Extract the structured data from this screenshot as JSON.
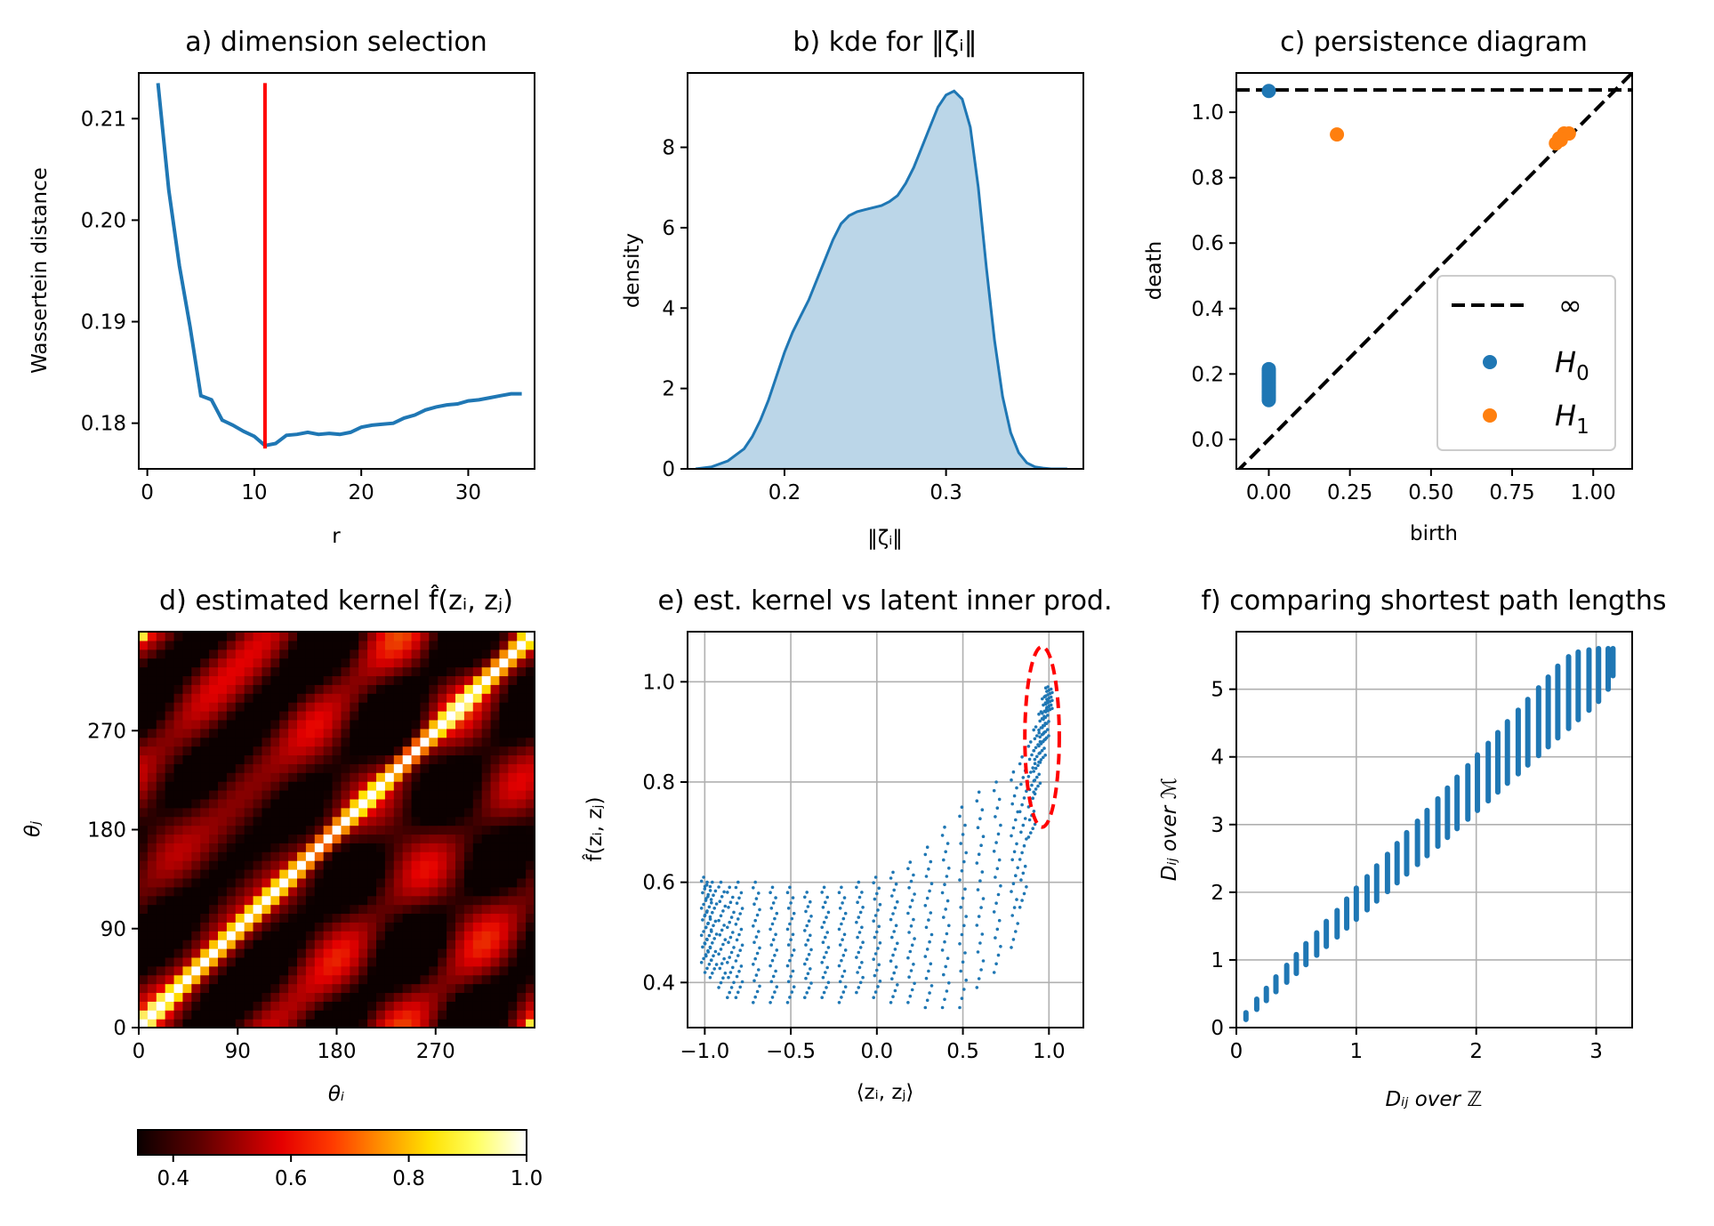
{
  "chart_data": [
    {
      "id": "a",
      "type": "line",
      "title": "a) dimension selection",
      "xlabel": "r",
      "ylabel": "Wassertein distance",
      "xlim": [
        -0.8,
        36.2
      ],
      "ylim": [
        0.1755,
        0.2145
      ],
      "xticks": [
        0,
        10,
        20,
        30
      ],
      "yticks": [
        0.18,
        0.19,
        0.2,
        0.21
      ],
      "ytick_labels": [
        "0.18",
        "0.19",
        "0.20",
        "0.21"
      ],
      "grid": false,
      "series": [
        {
          "color": "#1f77b4",
          "x": [
            1,
            2,
            3,
            4,
            5,
            6,
            7,
            8,
            9,
            10,
            11,
            12,
            13,
            14,
            15,
            16,
            17,
            18,
            19,
            20,
            21,
            22,
            23,
            24,
            25,
            26,
            27,
            28,
            29,
            30,
            31,
            32,
            33,
            34,
            35
          ],
          "y": [
            0.2135,
            0.203,
            0.1955,
            0.1895,
            0.1827,
            0.1823,
            0.1803,
            0.1798,
            0.1792,
            0.1787,
            0.1778,
            0.178,
            0.1788,
            0.1789,
            0.1791,
            0.1789,
            0.179,
            0.1789,
            0.1791,
            0.1796,
            0.1798,
            0.1799,
            0.18,
            0.1805,
            0.1808,
            0.1813,
            0.1816,
            0.1818,
            0.1819,
            0.1822,
            0.1823,
            0.1825,
            0.1827,
            0.1829,
            0.1829
          ]
        }
      ],
      "vline": {
        "x": 11,
        "ymin": 0.1775,
        "ymax": 0.2135,
        "color": "#ff0000"
      }
    },
    {
      "id": "b",
      "type": "area",
      "title": "b) kde for ‖ζᵢ‖",
      "xlabel": "‖ζᵢ‖",
      "ylabel": "density",
      "xlim": [
        0.14,
        0.385
      ],
      "ylim": [
        0,
        9.85
      ],
      "xticks": [
        0.2,
        0.3
      ],
      "xtick_labels": [
        "0.2",
        "0.3"
      ],
      "yticks": [
        0,
        2,
        4,
        6,
        8
      ],
      "grid": false,
      "fill_color": "#1f77b4",
      "x": [
        0.145,
        0.155,
        0.165,
        0.175,
        0.18,
        0.185,
        0.19,
        0.195,
        0.2,
        0.205,
        0.21,
        0.215,
        0.22,
        0.225,
        0.23,
        0.235,
        0.24,
        0.245,
        0.25,
        0.255,
        0.26,
        0.265,
        0.27,
        0.275,
        0.28,
        0.285,
        0.29,
        0.295,
        0.3,
        0.305,
        0.31,
        0.315,
        0.32,
        0.325,
        0.33,
        0.335,
        0.34,
        0.345,
        0.35,
        0.355,
        0.36,
        0.365,
        0.37,
        0.375
      ],
      "y": [
        0.0,
        0.05,
        0.2,
        0.5,
        0.8,
        1.2,
        1.7,
        2.3,
        2.9,
        3.4,
        3.8,
        4.2,
        4.7,
        5.2,
        5.7,
        6.1,
        6.3,
        6.4,
        6.45,
        6.5,
        6.55,
        6.65,
        6.8,
        7.1,
        7.5,
        8.0,
        8.5,
        9.0,
        9.3,
        9.4,
        9.2,
        8.5,
        7.0,
        5.0,
        3.2,
        1.8,
        0.9,
        0.4,
        0.15,
        0.05,
        0.02,
        0.0,
        0.0,
        0.0
      ]
    },
    {
      "id": "c",
      "type": "scatter",
      "title": "c) persistence diagram",
      "xlabel": "birth",
      "ylabel": "death",
      "xlim": [
        -0.1,
        1.12
      ],
      "ylim": [
        -0.09,
        1.12
      ],
      "xticks": [
        0.0,
        0.25,
        0.5,
        0.75,
        1.0
      ],
      "xtick_labels": [
        "0.00",
        "0.25",
        "0.50",
        "0.75",
        "1.00"
      ],
      "yticks": [
        0.0,
        0.2,
        0.4,
        0.6,
        0.8,
        1.0
      ],
      "ytick_labels": [
        "0.0",
        "0.2",
        "0.4",
        "0.6",
        "0.8",
        "1.0"
      ],
      "grid": false,
      "infinity_line": {
        "y": 1.068,
        "label": "∞"
      },
      "legend_position": "lower-right",
      "series": [
        {
          "name": "H",
          "subscript": "0",
          "color": "#1f77b4",
          "points": [
            [
              0,
              1.065
            ],
            [
              0,
              0.12
            ],
            [
              0,
              0.125
            ],
            [
              0,
              0.13
            ],
            [
              0,
              0.135
            ],
            [
              0,
              0.14
            ],
            [
              0,
              0.145
            ],
            [
              0,
              0.15
            ],
            [
              0,
              0.155
            ],
            [
              0,
              0.16
            ],
            [
              0,
              0.165
            ],
            [
              0,
              0.17
            ],
            [
              0,
              0.175
            ],
            [
              0,
              0.18
            ],
            [
              0,
              0.185
            ],
            [
              0,
              0.19
            ],
            [
              0,
              0.195
            ],
            [
              0,
              0.2
            ],
            [
              0,
              0.205
            ],
            [
              0,
              0.21
            ],
            [
              0,
              0.215
            ]
          ]
        },
        {
          "name": "H",
          "subscript": "1",
          "color": "#ff7f0e",
          "points": [
            [
              0.21,
              0.932
            ],
            [
              0.885,
              0.905
            ],
            [
              0.9,
              0.915
            ],
            [
              0.91,
              0.935
            ],
            [
              0.925,
              0.935
            ],
            [
              0.895,
              0.92
            ]
          ]
        }
      ]
    },
    {
      "id": "d",
      "type": "heatmap",
      "title": "d) estimated kernel f̂(zᵢ, zⱼ)",
      "xlabel": "θᵢ",
      "ylabel": "θⱼ",
      "xlim": [
        0,
        360
      ],
      "ylim": [
        0,
        360
      ],
      "xticks": [
        0,
        90,
        180,
        270
      ],
      "yticks": [
        0,
        90,
        180,
        270
      ],
      "colormap": "hot",
      "colorbar": {
        "min": 0.34,
        "max": 1.0,
        "ticks": [
          0.4,
          0.6,
          0.8,
          1.0
        ],
        "tick_labels": [
          "0.4",
          "0.6",
          "0.8",
          "1.0"
        ]
      }
    },
    {
      "id": "e",
      "type": "scatter",
      "title": "e) est. kernel vs latent inner prod.",
      "xlabel": "⟨zᵢ, zⱼ⟩",
      "ylabel": "f̂(zᵢ, zⱼ)",
      "xlim": [
        -1.1,
        1.2
      ],
      "ylim": [
        0.31,
        1.1
      ],
      "xticks": [
        -1.0,
        -0.5,
        0.0,
        0.5,
        1.0
      ],
      "xtick_labels": [
        "−1.0",
        "−0.5",
        "0.0",
        "0.5",
        "1.0"
      ],
      "yticks": [
        0.4,
        0.6,
        0.8,
        1.0
      ],
      "ytick_labels": [
        "0.4",
        "0.6",
        "0.8",
        "1.0"
      ],
      "grid": true,
      "color": "#1f77b4",
      "highlight_ellipse": {
        "cx": 0.96,
        "cy": 0.89,
        "rx": 0.1,
        "ry": 0.18,
        "color": "#ff0000"
      },
      "columns": [
        {
          "x": -1.0,
          "ymin": 0.44,
          "ymax": 0.61
        },
        {
          "x": -0.98,
          "ymin": 0.42,
          "ymax": 0.6
        },
        {
          "x": -0.95,
          "ymin": 0.41,
          "ymax": 0.6
        },
        {
          "x": -0.9,
          "ymin": 0.39,
          "ymax": 0.6
        },
        {
          "x": -0.85,
          "ymin": 0.37,
          "ymax": 0.59
        },
        {
          "x": -0.8,
          "ymin": 0.37,
          "ymax": 0.6
        },
        {
          "x": -0.7,
          "ymin": 0.36,
          "ymax": 0.6
        },
        {
          "x": -0.6,
          "ymin": 0.36,
          "ymax": 0.59
        },
        {
          "x": -0.5,
          "ymin": 0.36,
          "ymax": 0.59
        },
        {
          "x": -0.4,
          "ymin": 0.37,
          "ymax": 0.58
        },
        {
          "x": -0.3,
          "ymin": 0.37,
          "ymax": 0.59
        },
        {
          "x": -0.2,
          "ymin": 0.36,
          "ymax": 0.59
        },
        {
          "x": -0.1,
          "ymin": 0.38,
          "ymax": 0.6
        },
        {
          "x": 0.0,
          "ymin": 0.37,
          "ymax": 0.61
        },
        {
          "x": 0.1,
          "ymin": 0.36,
          "ymax": 0.62
        },
        {
          "x": 0.2,
          "ymin": 0.36,
          "ymax": 0.64
        },
        {
          "x": 0.3,
          "ymin": 0.35,
          "ymax": 0.67
        },
        {
          "x": 0.4,
          "ymin": 0.35,
          "ymax": 0.71
        },
        {
          "x": 0.5,
          "ymin": 0.35,
          "ymax": 0.75
        },
        {
          "x": 0.6,
          "ymin": 0.39,
          "ymax": 0.78
        },
        {
          "x": 0.7,
          "ymin": 0.42,
          "ymax": 0.8
        },
        {
          "x": 0.8,
          "ymin": 0.47,
          "ymax": 0.82
        },
        {
          "x": 0.85,
          "ymin": 0.55,
          "ymax": 0.85
        },
        {
          "x": 0.9,
          "ymin": 0.69,
          "ymax": 0.88
        },
        {
          "x": 0.93,
          "ymin": 0.78,
          "ymax": 0.91
        },
        {
          "x": 0.96,
          "ymin": 0.84,
          "ymax": 0.94
        },
        {
          "x": 0.98,
          "ymin": 0.88,
          "ymax": 0.97
        },
        {
          "x": 1.0,
          "ymin": 0.94,
          "ymax": 0.99
        }
      ]
    },
    {
      "id": "f",
      "type": "scatter",
      "title": "f) comparing shortest path lengths",
      "xlabel": "Dᵢⱼ over ℤ",
      "ylabel": "Dᵢⱼ over ℳ",
      "xlim": [
        0,
        3.3
      ],
      "ylim": [
        0,
        5.85
      ],
      "xticks": [
        0,
        1,
        2,
        3
      ],
      "yticks": [
        0,
        1,
        2,
        3,
        4,
        5
      ],
      "grid": true,
      "color": "#1f77b4",
      "segments": [
        {
          "x": 0.08,
          "ymin": 0.12,
          "ymax": 0.22
        },
        {
          "x": 0.17,
          "ymin": 0.27,
          "ymax": 0.42
        },
        {
          "x": 0.25,
          "ymin": 0.4,
          "ymax": 0.58
        },
        {
          "x": 0.33,
          "ymin": 0.53,
          "ymax": 0.75
        },
        {
          "x": 0.42,
          "ymin": 0.67,
          "ymax": 0.92
        },
        {
          "x": 0.5,
          "ymin": 0.8,
          "ymax": 1.08
        },
        {
          "x": 0.58,
          "ymin": 0.93,
          "ymax": 1.24
        },
        {
          "x": 0.67,
          "ymin": 1.07,
          "ymax": 1.4
        },
        {
          "x": 0.75,
          "ymin": 1.2,
          "ymax": 1.57
        },
        {
          "x": 0.84,
          "ymin": 1.34,
          "ymax": 1.73
        },
        {
          "x": 0.92,
          "ymin": 1.47,
          "ymax": 1.9
        },
        {
          "x": 1.0,
          "ymin": 1.6,
          "ymax": 2.06
        },
        {
          "x": 1.09,
          "ymin": 1.74,
          "ymax": 2.23
        },
        {
          "x": 1.17,
          "ymin": 1.87,
          "ymax": 2.39
        },
        {
          "x": 1.26,
          "ymin": 2.01,
          "ymax": 2.56
        },
        {
          "x": 1.34,
          "ymin": 2.14,
          "ymax": 2.72
        },
        {
          "x": 1.42,
          "ymin": 2.27,
          "ymax": 2.88
        },
        {
          "x": 1.51,
          "ymin": 2.41,
          "ymax": 3.05
        },
        {
          "x": 1.59,
          "ymin": 2.54,
          "ymax": 3.21
        },
        {
          "x": 1.68,
          "ymin": 2.68,
          "ymax": 3.38
        },
        {
          "x": 1.76,
          "ymin": 2.81,
          "ymax": 3.54
        },
        {
          "x": 1.84,
          "ymin": 2.94,
          "ymax": 3.7
        },
        {
          "x": 1.93,
          "ymin": 3.08,
          "ymax": 3.87
        },
        {
          "x": 2.01,
          "ymin": 3.21,
          "ymax": 4.03
        },
        {
          "x": 2.1,
          "ymin": 3.35,
          "ymax": 4.2
        },
        {
          "x": 2.18,
          "ymin": 3.48,
          "ymax": 4.36
        },
        {
          "x": 2.26,
          "ymin": 3.61,
          "ymax": 4.52
        },
        {
          "x": 2.35,
          "ymin": 3.75,
          "ymax": 4.69
        },
        {
          "x": 2.43,
          "ymin": 3.88,
          "ymax": 4.85
        },
        {
          "x": 2.52,
          "ymin": 4.02,
          "ymax": 5.02
        },
        {
          "x": 2.6,
          "ymin": 4.15,
          "ymax": 5.18
        },
        {
          "x": 2.68,
          "ymin": 4.28,
          "ymax": 5.34
        },
        {
          "x": 2.77,
          "ymin": 4.42,
          "ymax": 5.48
        },
        {
          "x": 2.85,
          "ymin": 4.55,
          "ymax": 5.55
        },
        {
          "x": 2.94,
          "ymin": 4.69,
          "ymax": 5.58
        },
        {
          "x": 3.02,
          "ymin": 4.82,
          "ymax": 5.6
        },
        {
          "x": 3.1,
          "ymin": 5.0,
          "ymax": 5.6
        },
        {
          "x": 3.14,
          "ymin": 5.2,
          "ymax": 5.6
        }
      ]
    }
  ]
}
